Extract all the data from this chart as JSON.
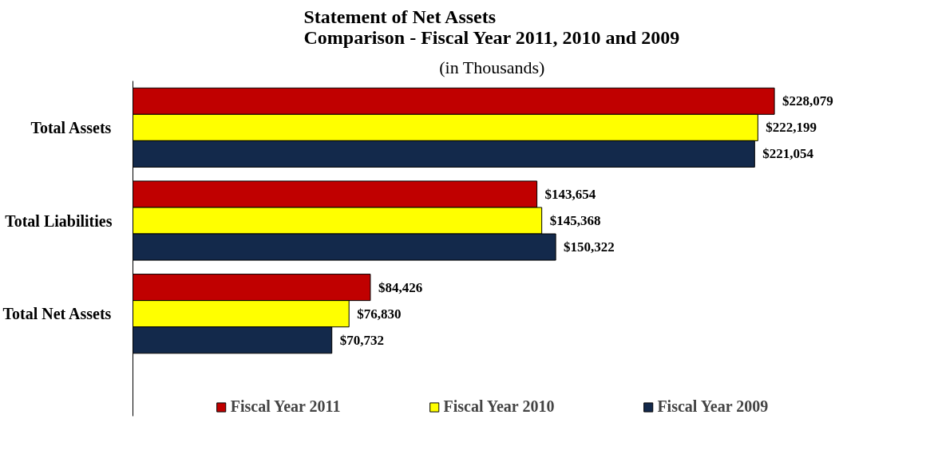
{
  "chart_data": {
    "type": "bar",
    "orientation": "horizontal",
    "title": "Statement of Net Assets\nComparison - Fiscal Year 2011, 2010 and 2009",
    "subtitle": "(in Thousands)",
    "categories": [
      "Total Assets",
      "Total Liabilities",
      "Total Net Assets"
    ],
    "series": [
      {
        "name": "Fiscal Year 2011",
        "color": "#c00000",
        "values": [
          228079,
          143654,
          84426
        ],
        "value_labels": [
          "$228,079",
          "$143,654",
          "$84,426"
        ]
      },
      {
        "name": "Fiscal Year 2010",
        "color": "#ffff00",
        "values": [
          222199,
          145368,
          76830
        ],
        "value_labels": [
          "$222,199",
          "$145,368",
          "$76,830"
        ]
      },
      {
        "name": "Fiscal Year 2009",
        "color": "#13294b",
        "values": [
          221054,
          150322,
          70732
        ],
        "value_labels": [
          "$221,054",
          "$150,322",
          "$70,732"
        ]
      }
    ],
    "tick_labels": "y",
    "legend": "bottom"
  }
}
